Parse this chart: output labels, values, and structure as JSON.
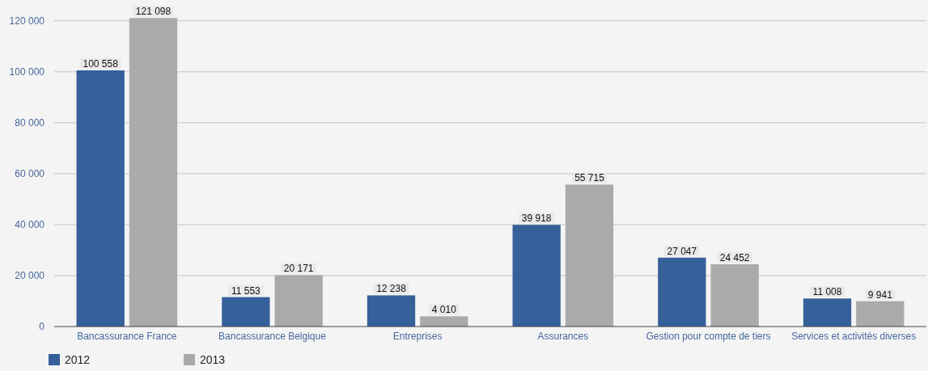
{
  "chart_data": {
    "type": "bar",
    "categories": [
      "Bancassurance France",
      "Bancassurance Belgique",
      "Entreprises",
      "Assurances",
      "Gestion pour compte de tiers",
      "Services et activités diverses"
    ],
    "series": [
      {
        "name": "2012",
        "color": "#35609a",
        "values": [
          100558,
          11553,
          12238,
          39918,
          27047,
          11008
        ]
      },
      {
        "name": "2013",
        "color": "#aaaaaa",
        "values": [
          121098,
          20171,
          4010,
          55715,
          24452,
          9941
        ]
      }
    ],
    "value_labels": [
      [
        "100 558",
        "11 553",
        "12 238",
        "39 918",
        "27 047",
        "11 008"
      ],
      [
        "121 098",
        "20 171",
        "4 010",
        "55 715",
        "24 452",
        "9 941"
      ]
    ],
    "ylim": [
      0,
      125000
    ],
    "yticks": [
      {
        "value": 0,
        "label": "0"
      },
      {
        "value": 20000,
        "label": "20 000"
      },
      {
        "value": 40000,
        "label": "40 000"
      },
      {
        "value": 60000,
        "label": "60 000"
      },
      {
        "value": 80000,
        "label": "80 000"
      },
      {
        "value": 100000,
        "label": "100 000"
      },
      {
        "value": 120000,
        "label": "120 000"
      }
    ],
    "grid": "y",
    "legend": "bottom left"
  }
}
